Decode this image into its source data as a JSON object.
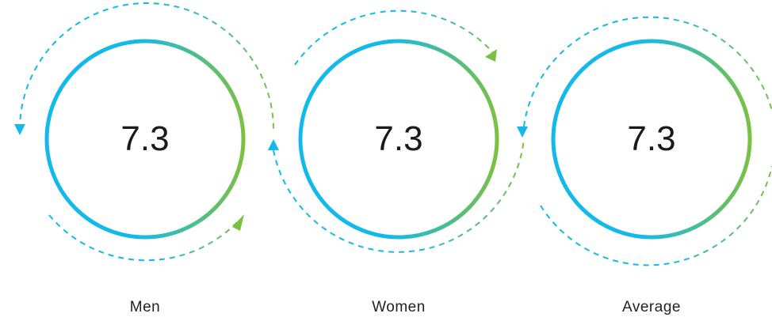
{
  "colors": {
    "ring_start": "#14b9ec",
    "ring_end": "#7ac142",
    "dashed_blue": "#14b9ec",
    "dashed_green": "#7ac142",
    "text": "#1a1a1a"
  },
  "groups": [
    {
      "label": "Men",
      "score": "7.3"
    },
    {
      "label": "Women",
      "score": "7.3"
    },
    {
      "label": "Average",
      "score": "7.3"
    }
  ]
}
